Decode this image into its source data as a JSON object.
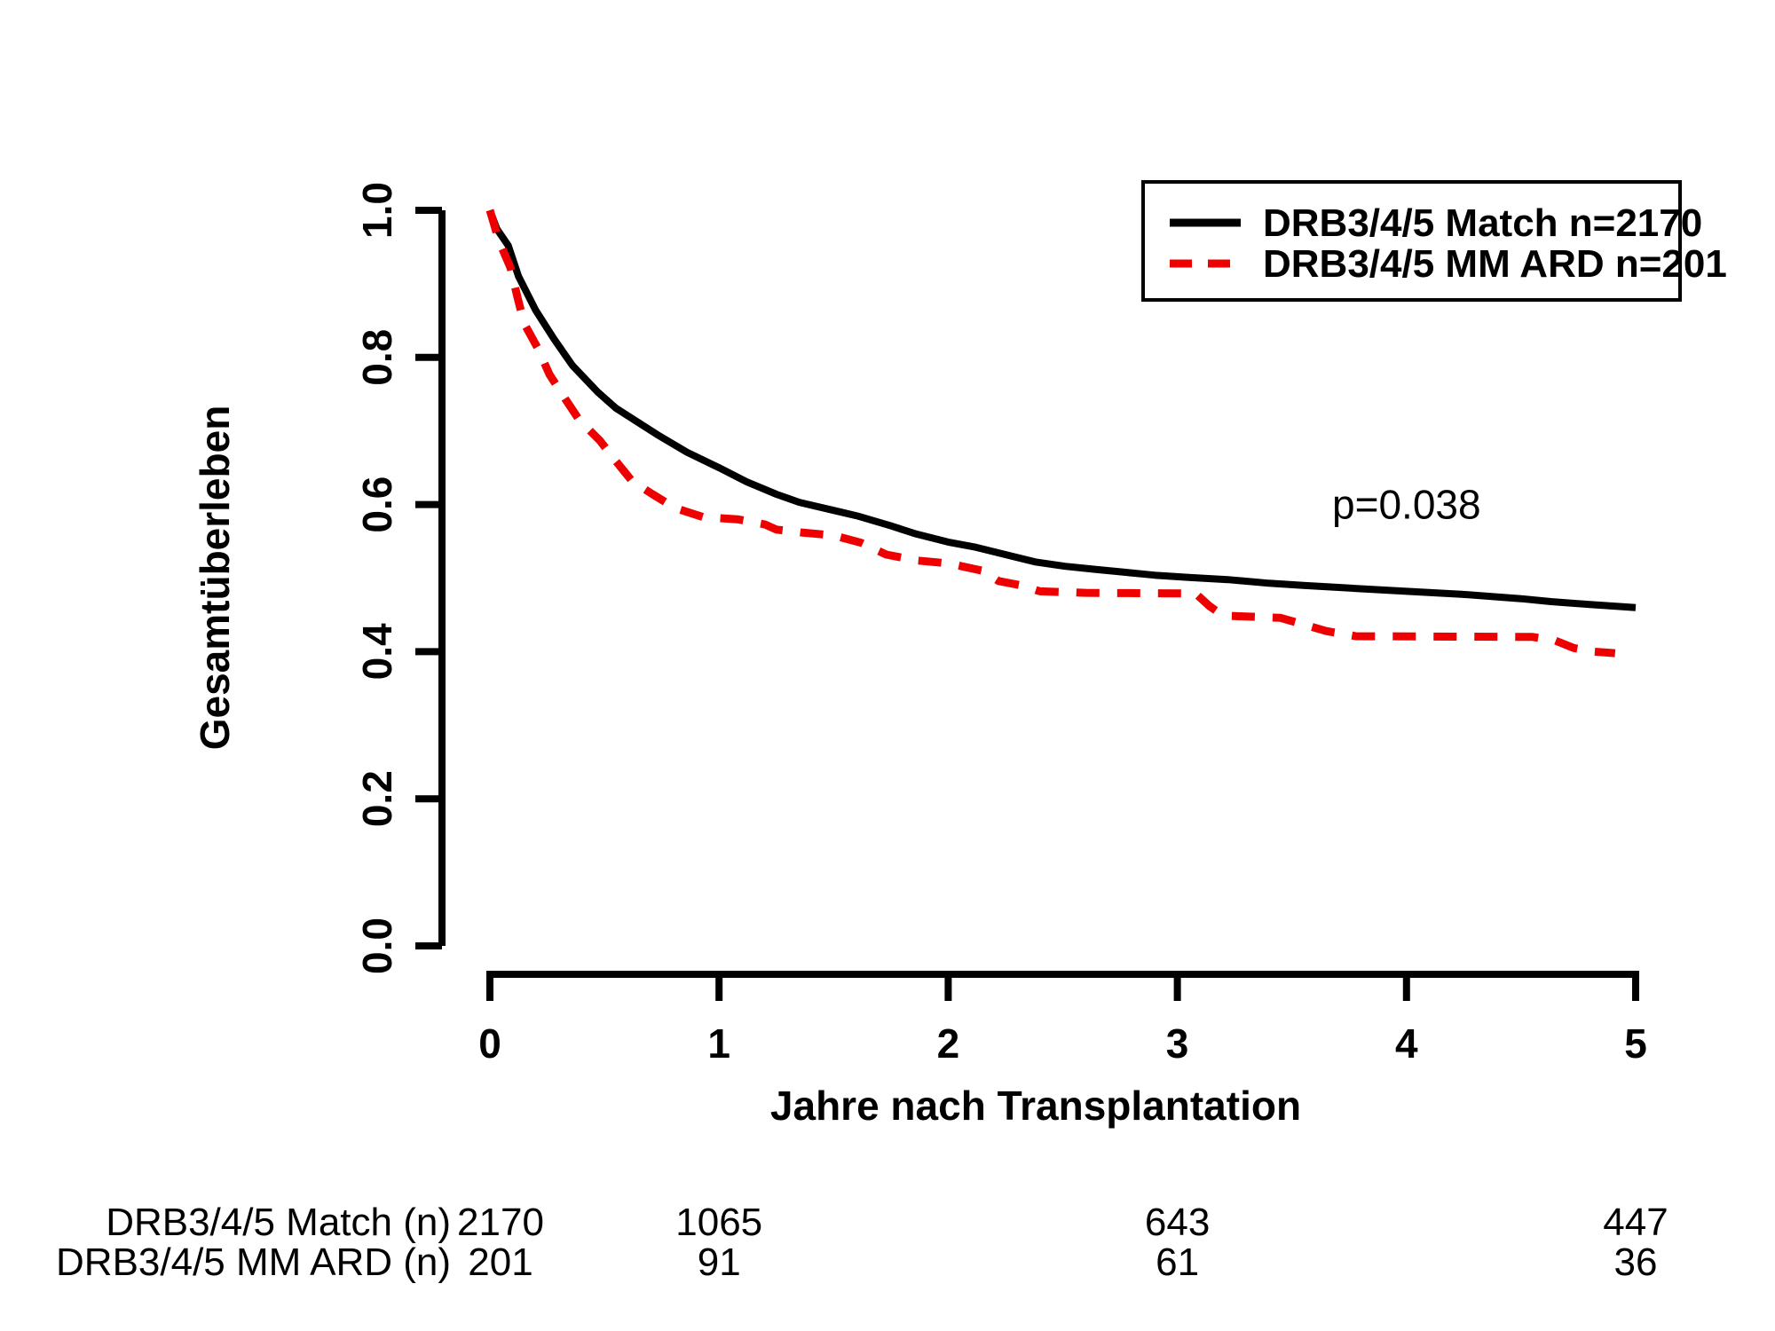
{
  "figure": {
    "background": "#ffffff"
  },
  "chart_data": {
    "type": "line",
    "subtype": "kaplan-meier-survival",
    "title": "",
    "xlabel": "Jahre nach Transplantation",
    "ylabel": "Gesamtüberleben",
    "xlim": [
      0,
      5
    ],
    "ylim": [
      0.0,
      1.0
    ],
    "xticks": [
      "0",
      "1",
      "2",
      "3",
      "4",
      "5"
    ],
    "yticks": [
      "0.0",
      "0.2",
      "0.4",
      "0.6",
      "0.8",
      "1.0"
    ],
    "grid": false,
    "legend_position": "top-right",
    "annotation": {
      "text": "p=0.038",
      "x": 4.0,
      "y": 0.6
    },
    "series": [
      {
        "name": "DRB3/4/5 Match n=2170",
        "color": "#000000",
        "line_style": "solid",
        "points": [
          [
            0.0,
            1.0
          ],
          [
            0.03,
            0.975
          ],
          [
            0.08,
            0.952
          ],
          [
            0.125,
            0.91
          ],
          [
            0.2,
            0.864
          ],
          [
            0.28,
            0.825
          ],
          [
            0.36,
            0.789
          ],
          [
            0.47,
            0.753
          ],
          [
            0.55,
            0.731
          ],
          [
            0.63,
            0.715
          ],
          [
            0.73,
            0.695
          ],
          [
            0.86,
            0.671
          ],
          [
            1.0,
            0.65
          ],
          [
            1.12,
            0.631
          ],
          [
            1.25,
            0.614
          ],
          [
            1.35,
            0.603
          ],
          [
            1.5,
            0.592
          ],
          [
            1.61,
            0.584
          ],
          [
            1.75,
            0.571
          ],
          [
            1.86,
            0.56
          ],
          [
            2.0,
            0.549
          ],
          [
            2.12,
            0.542
          ],
          [
            2.25,
            0.532
          ],
          [
            2.38,
            0.522
          ],
          [
            2.51,
            0.516
          ],
          [
            2.64,
            0.512
          ],
          [
            2.77,
            0.508
          ],
          [
            2.9,
            0.504
          ],
          [
            3.05,
            0.501
          ],
          [
            3.22,
            0.498
          ],
          [
            3.4,
            0.493
          ],
          [
            3.55,
            0.49
          ],
          [
            3.72,
            0.487
          ],
          [
            4.0,
            0.482
          ],
          [
            4.24,
            0.478
          ],
          [
            4.5,
            0.472
          ],
          [
            4.63,
            0.468
          ],
          [
            4.8,
            0.464
          ],
          [
            5.0,
            0.46
          ]
        ]
      },
      {
        "name": "DRB3/4/5 MM ARD n=201",
        "color": "#ee0000",
        "line_style": "dashed",
        "points": [
          [
            0.0,
            1.0
          ],
          [
            0.04,
            0.958
          ],
          [
            0.09,
            0.922
          ],
          [
            0.12,
            0.882
          ],
          [
            0.15,
            0.846
          ],
          [
            0.21,
            0.812
          ],
          [
            0.26,
            0.777
          ],
          [
            0.33,
            0.743
          ],
          [
            0.39,
            0.715
          ],
          [
            0.48,
            0.687
          ],
          [
            0.55,
            0.659
          ],
          [
            0.62,
            0.632
          ],
          [
            0.71,
            0.614
          ],
          [
            0.81,
            0.595
          ],
          [
            0.93,
            0.583
          ],
          [
            1.08,
            0.58
          ],
          [
            1.2,
            0.573
          ],
          [
            1.25,
            0.566
          ],
          [
            1.36,
            0.562
          ],
          [
            1.5,
            0.558
          ],
          [
            1.62,
            0.548
          ],
          [
            1.73,
            0.532
          ],
          [
            1.86,
            0.524
          ],
          [
            2.0,
            0.52
          ],
          [
            2.15,
            0.51
          ],
          [
            2.22,
            0.496
          ],
          [
            2.32,
            0.49
          ],
          [
            2.4,
            0.482
          ],
          [
            2.6,
            0.48
          ],
          [
            3.08,
            0.479
          ],
          [
            3.14,
            0.462
          ],
          [
            3.2,
            0.449
          ],
          [
            3.45,
            0.446
          ],
          [
            3.55,
            0.437
          ],
          [
            3.65,
            0.428
          ],
          [
            3.78,
            0.421
          ],
          [
            4.55,
            0.42
          ],
          [
            4.65,
            0.415
          ],
          [
            4.73,
            0.405
          ],
          [
            4.82,
            0.4
          ],
          [
            4.91,
            0.398
          ]
        ]
      }
    ],
    "risk_table": {
      "time_points": [
        0,
        1,
        3,
        5
      ],
      "rows": [
        {
          "label": "DRB3/4/5 Match (n)",
          "counts": [
            "2170",
            "1065",
            "643",
            "447"
          ]
        },
        {
          "label": "DRB3/4/5 MM ARD (n)",
          "counts": [
            "201",
            "91",
            "61",
            "36"
          ]
        }
      ]
    }
  }
}
